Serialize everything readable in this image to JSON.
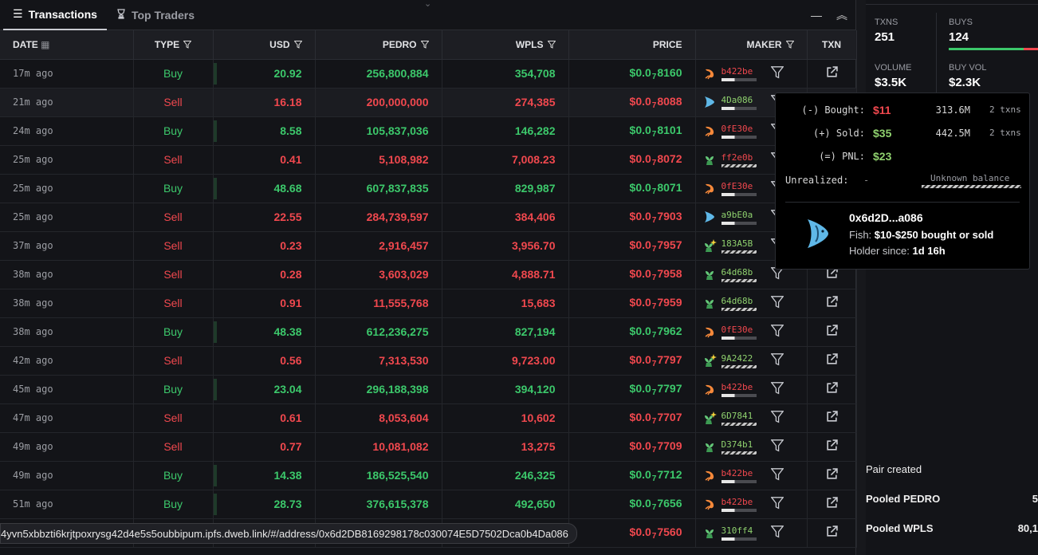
{
  "tabs": [
    {
      "label": "Transactions",
      "icon": "list-icon",
      "active": true
    },
    {
      "label": "Top Traders",
      "icon": "trophy-icon",
      "active": false
    }
  ],
  "columns": {
    "date": "DATE",
    "type": "TYPE",
    "usd": "USD",
    "pedro": "PEDRO",
    "wpls": "WPLS",
    "price": "PRICE",
    "maker": "MAKER",
    "txn": "TXN"
  },
  "price_prefix": "$0.0",
  "price_sub": "7",
  "rows": [
    {
      "date": "17m ago",
      "type": "Buy",
      "usd": "20.92",
      "pedro": "256,800,884",
      "wpls": "354,708",
      "price": "8160",
      "maker": "b422be",
      "icon": "shrimp",
      "mcolor": "#f0484e"
    },
    {
      "date": "21m ago",
      "type": "Sell",
      "usd": "16.18",
      "pedro": "200,000,000",
      "wpls": "274,385",
      "price": "8088",
      "maker": "4Da086",
      "icon": "fish",
      "mcolor": "#8fd16e"
    },
    {
      "date": "24m ago",
      "type": "Buy",
      "usd": "8.58",
      "pedro": "105,837,036",
      "wpls": "146,282",
      "price": "8101",
      "maker": "0fE30e",
      "icon": "shrimp",
      "mcolor": "#f0484e"
    },
    {
      "date": "25m ago",
      "type": "Sell",
      "usd": "0.41",
      "pedro": "5,108,982",
      "wpls": "7,008.23",
      "price": "8072",
      "maker": "ff2e0b",
      "icon": "plant",
      "mcolor": "#f0484e"
    },
    {
      "date": "25m ago",
      "type": "Buy",
      "usd": "48.68",
      "pedro": "607,837,835",
      "wpls": "829,987",
      "price": "8071",
      "maker": "0fE30e",
      "icon": "shrimp",
      "mcolor": "#f0484e"
    },
    {
      "date": "25m ago",
      "type": "Sell",
      "usd": "22.55",
      "pedro": "284,739,597",
      "wpls": "384,406",
      "price": "7903",
      "maker": "a9bE0a",
      "icon": "fish",
      "mcolor": "#8fd16e"
    },
    {
      "date": "37m ago",
      "type": "Sell",
      "usd": "0.23",
      "pedro": "2,916,457",
      "wpls": "3,956.70",
      "price": "7957",
      "maker": "183A5B",
      "icon": "plant-new",
      "mcolor": "#8fd16e"
    },
    {
      "date": "38m ago",
      "type": "Sell",
      "usd": "0.28",
      "pedro": "3,603,029",
      "wpls": "4,888.71",
      "price": "7958",
      "maker": "64d68b",
      "icon": "plant",
      "mcolor": "#8fd16e"
    },
    {
      "date": "38m ago",
      "type": "Sell",
      "usd": "0.91",
      "pedro": "11,555,768",
      "wpls": "15,683",
      "price": "7959",
      "maker": "64d68b",
      "icon": "plant",
      "mcolor": "#8fd16e"
    },
    {
      "date": "38m ago",
      "type": "Buy",
      "usd": "48.38",
      "pedro": "612,236,275",
      "wpls": "827,194",
      "price": "7962",
      "maker": "0fE30e",
      "icon": "shrimp",
      "mcolor": "#f0484e"
    },
    {
      "date": "42m ago",
      "type": "Sell",
      "usd": "0.56",
      "pedro": "7,313,530",
      "wpls": "9,723.00",
      "price": "7797",
      "maker": "9A2422",
      "icon": "plant-new",
      "mcolor": "#8fd16e"
    },
    {
      "date": "45m ago",
      "type": "Buy",
      "usd": "23.04",
      "pedro": "296,188,398",
      "wpls": "394,120",
      "price": "7797",
      "maker": "b422be",
      "icon": "shrimp",
      "mcolor": "#f0484e"
    },
    {
      "date": "47m ago",
      "type": "Sell",
      "usd": "0.61",
      "pedro": "8,053,604",
      "wpls": "10,602",
      "price": "7707",
      "maker": "6D7841",
      "icon": "plant-new",
      "mcolor": "#8fd16e"
    },
    {
      "date": "49m ago",
      "type": "Sell",
      "usd": "0.77",
      "pedro": "10,081,082",
      "wpls": "13,275",
      "price": "7709",
      "maker": "D374b1",
      "icon": "plant",
      "mcolor": "#8fd16e"
    },
    {
      "date": "49m ago",
      "type": "Buy",
      "usd": "14.38",
      "pedro": "186,525,540",
      "wpls": "246,325",
      "price": "7712",
      "maker": "b422be",
      "icon": "shrimp",
      "mcolor": "#f0484e"
    },
    {
      "date": "51m ago",
      "type": "Buy",
      "usd": "28.73",
      "pedro": "376,615,378",
      "wpls": "492,650",
      "price": "7656",
      "maker": "b422be",
      "icon": "shrimp",
      "mcolor": "#f0484e"
    },
    {
      "date": "",
      "type": "",
      "usd": "",
      "pedro": "",
      "wpls": "",
      "price": "7560",
      "maker": "310ff4",
      "icon": "plant",
      "mcolor": "#8fd16e"
    }
  ],
  "tooltip": {
    "bought_label": "(-) Bought:",
    "bought_val": "$11",
    "bought_amt": "313.6M",
    "bought_cnt": "2 txns",
    "sold_label": "(+) Sold:",
    "sold_val": "$35",
    "sold_amt": "442.5M",
    "sold_cnt": "2 txns",
    "pnl_label": "(=) PNL:",
    "pnl_val": "$23",
    "unreal_label": "Unrealized:",
    "unreal_val": "-",
    "unknown": "Unknown balance",
    "name": "0x6d2D...a086",
    "fish_label": "Fish:",
    "fish_text": "$10-$250 bought or sold",
    "holder_label": "Holder since:",
    "holder_val": "1d 16h"
  },
  "side": {
    "txns_label": "TXNS",
    "txns_val": "251",
    "buys_label": "BUYS",
    "buys_val": "124",
    "volume_label": "VOLUME",
    "volume_val": "$3.5K",
    "buyvol_label": "BUY VOL",
    "buyvol_val": "$2.3K",
    "pair_created": "Pair created",
    "pooled_pedro": "Pooled PEDRO",
    "pooled_pedro_val": "5",
    "pooled_wpls": "Pooled WPLS",
    "pooled_wpls_val": "80,1"
  },
  "statusbar": "4yvn5xbbzti6krjtpoxrysg42d4e5s5oubbipum.ipfs.dweb.link/#/address/0x6d2DB8169298178c030074E5D7502Dca0b4Da086"
}
